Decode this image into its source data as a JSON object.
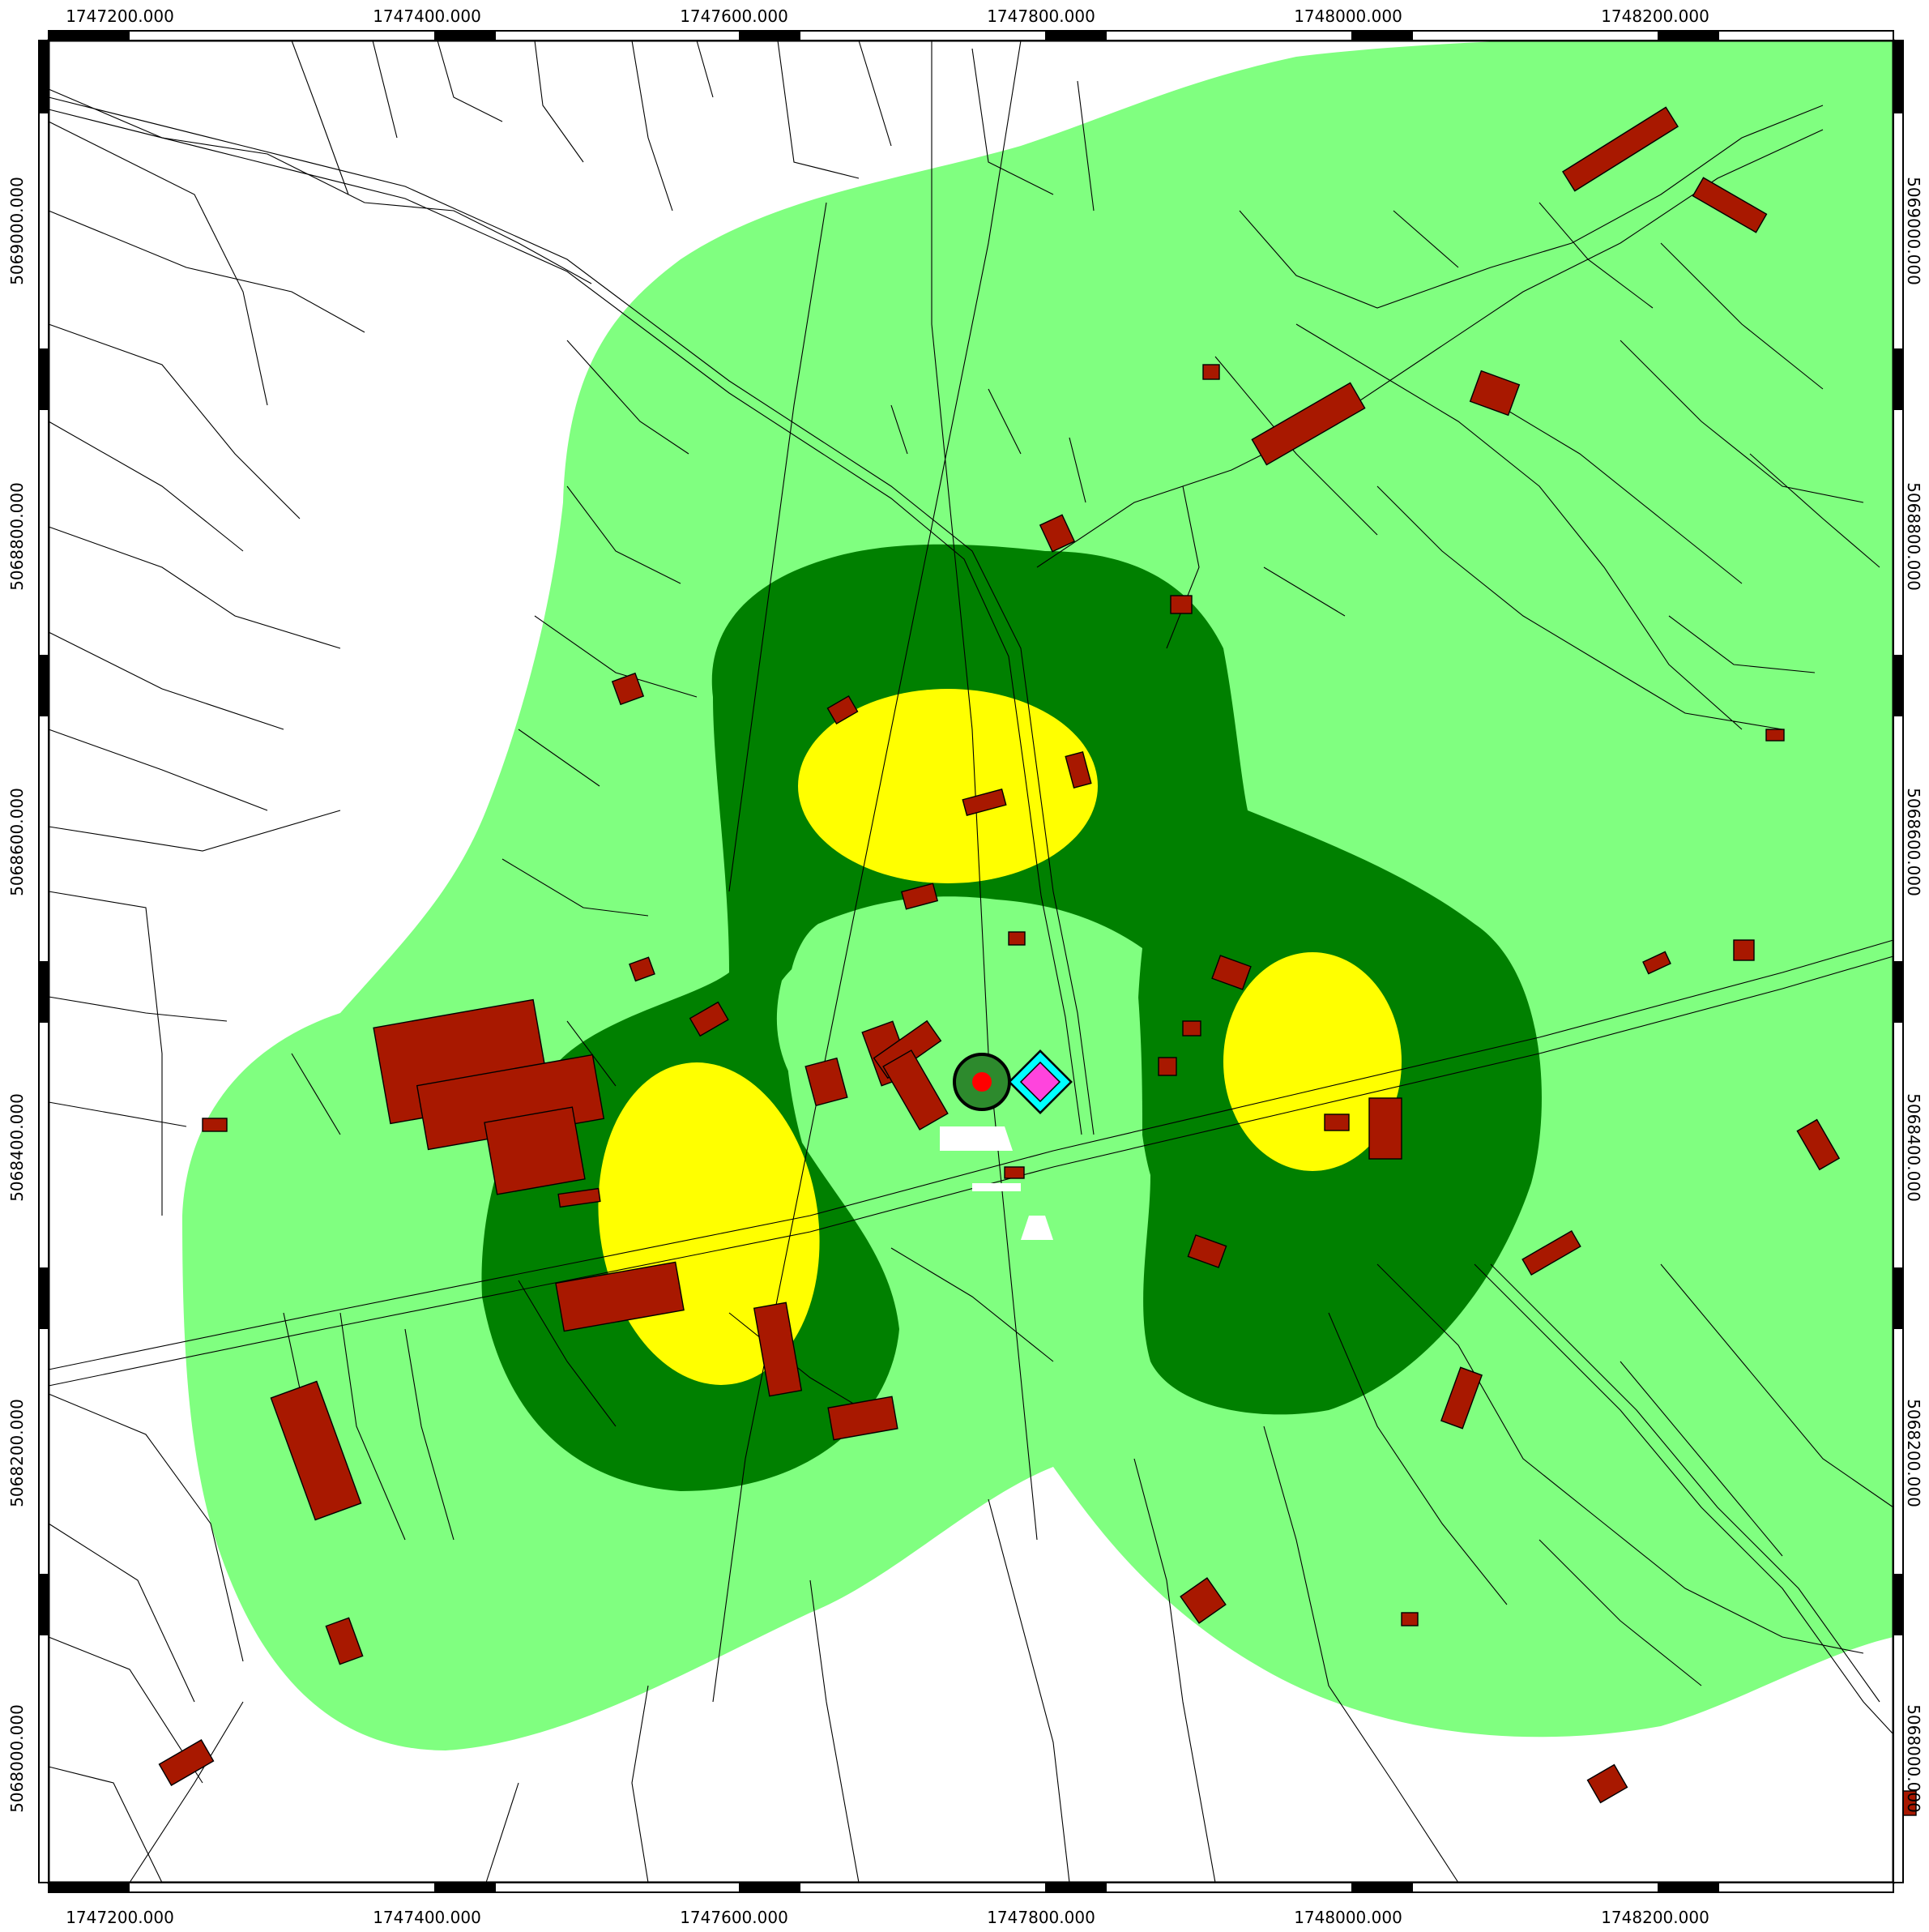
{
  "map": {
    "x_labels": [
      "1747200.000",
      "1747400.000",
      "1747600.000",
      "1747800.000",
      "1748000.000",
      "1748200.000"
    ],
    "y_labels": [
      "5068000.000",
      "5068200.000",
      "5068400.000",
      "5068600.000",
      "5068800.000",
      "5069000.000"
    ],
    "zone_colors": {
      "outer": "#80ff80",
      "middle": "#008000",
      "inner": "#ffff00",
      "building": "#a81800",
      "source_circle": "#2d8a2d",
      "source_dot": "#ff0000",
      "receptor_outer": "#00ffff",
      "receptor_inner": "#ff44dd"
    },
    "markers": [
      {
        "name": "source",
        "icon": "circle-marker"
      },
      {
        "name": "receptor",
        "icon": "diamond-marker"
      }
    ]
  }
}
